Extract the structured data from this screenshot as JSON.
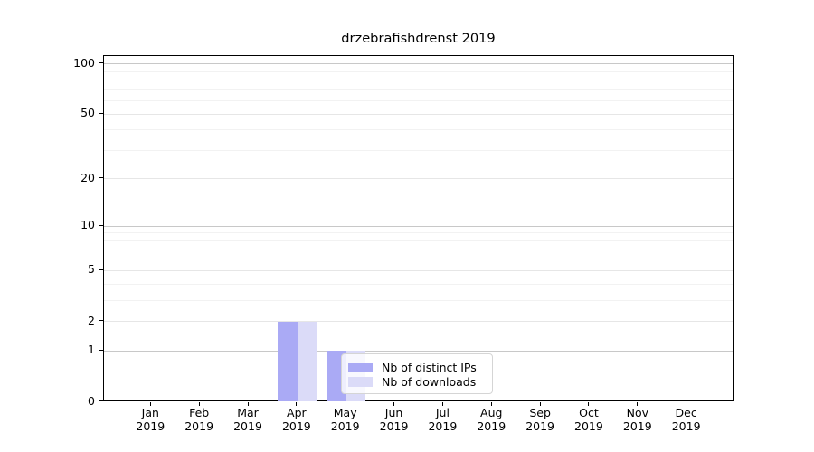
{
  "chart_data": {
    "type": "bar",
    "title": "drzebrafishdrenst 2019",
    "x_months": [
      "Jan",
      "Feb",
      "Mar",
      "Apr",
      "May",
      "Jun",
      "Jul",
      "Aug",
      "Sep",
      "Oct",
      "Nov",
      "Dec"
    ],
    "x_year": "2019",
    "series": [
      {
        "name": "Nb of distinct IPs",
        "color": "#aaaaf5",
        "values": [
          0,
          0,
          0,
          2,
          1,
          0,
          0,
          0,
          0,
          0,
          0,
          0
        ]
      },
      {
        "name": "Nb of downloads",
        "color": "#dbdbf8",
        "values": [
          0,
          0,
          0,
          2,
          1,
          0,
          0,
          0,
          0,
          0,
          0,
          0
        ]
      }
    ],
    "yscale": "log1p",
    "ylim": [
      0,
      111
    ],
    "yticks": [
      0,
      1,
      2,
      5,
      10,
      20,
      50,
      100
    ],
    "ytick_labels": [
      "0",
      "1",
      "2",
      "5",
      "10",
      "20",
      "50",
      "100"
    ],
    "yticks_minor": [
      3,
      4,
      6,
      7,
      8,
      9,
      30,
      40,
      60,
      70,
      80,
      90
    ],
    "grid": {
      "decade_color": "#c8c8c8",
      "major_color": "#e6e6e6",
      "minor_color": "#f2f2f2"
    },
    "legend_position": "lower center",
    "xlabel": "",
    "ylabel": ""
  }
}
